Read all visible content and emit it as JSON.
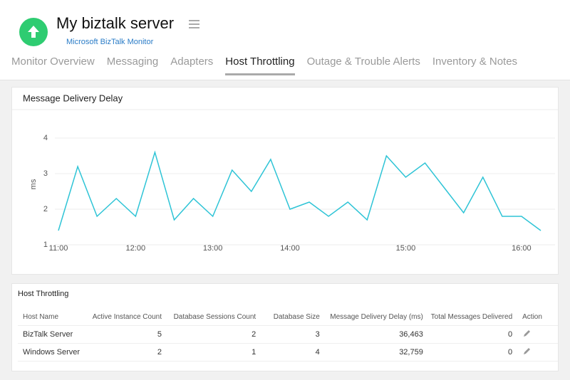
{
  "header": {
    "title": "My biztalk server",
    "subtitle": "Microsoft BizTalk Monitor"
  },
  "tabs": [
    "Monitor Overview",
    "Messaging",
    "Adapters",
    "Host Throttling",
    "Outage & Trouble Alerts",
    "Inventory & Notes"
  ],
  "chart_data": {
    "type": "line",
    "title": "Message Delivery Delay",
    "y_label": "ms",
    "color": "#2ec4d6",
    "grid": true,
    "categories": [
      "11:00",
      null,
      null,
      null,
      "12:00",
      null,
      null,
      null,
      "13:00",
      null,
      null,
      null,
      "14:00",
      null,
      null,
      null,
      null,
      null,
      "15:00",
      null,
      null,
      null,
      null,
      null,
      "16:00",
      null
    ],
    "values": [
      1.4,
      3.2,
      1.8,
      2.3,
      1.8,
      3.6,
      1.7,
      2.3,
      1.8,
      3.1,
      2.5,
      3.4,
      2.0,
      2.2,
      1.8,
      2.2,
      1.7,
      3.5,
      2.9,
      3.3,
      2.6,
      1.9,
      2.9,
      1.8,
      1.8,
      1.4
    ],
    "ylim": [
      1,
      4.2
    ],
    "yticks": [
      1,
      2,
      3,
      4
    ]
  },
  "table": {
    "title": "Host Throttling",
    "columns": [
      "Host Name",
      "Active Instance Count",
      "Database Sessions Count",
      "Database Size",
      "Message Delivery Delay (ms)",
      "Total Messages Delivered",
      "Action"
    ],
    "rows": [
      [
        "BizTalk Server",
        "5",
        "2",
        "3",
        "36,463",
        "0"
      ],
      [
        "Windows Server",
        "2",
        "1",
        "4",
        "32,759",
        "0"
      ]
    ]
  }
}
